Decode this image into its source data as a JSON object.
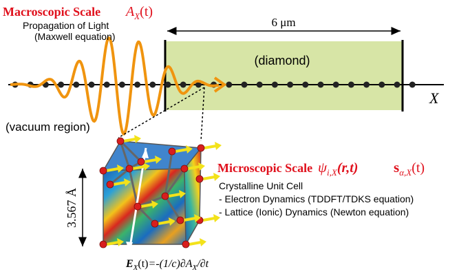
{
  "macroscopic": {
    "title": "Macroscopic Scale",
    "symbol": "A",
    "subscript": "X",
    "argument": "(t)",
    "caption": [
      "Propagation of Light",
      "(Maxwell equation)"
    ]
  },
  "scale_label": "6 μm",
  "region_labels": {
    "diamond": "(diamond)",
    "vacuum": "(vacuum region)"
  },
  "axis_label": "X",
  "microscopic": {
    "title": "Microscopic Scale",
    "wavefunction": {
      "symbol": "ψ",
      "subscript": "i,X",
      "argument": "(r,t)"
    },
    "displacement": {
      "symbol": "s",
      "subscript": "α,X",
      "argument": "(t)"
    }
  },
  "unit_cell": {
    "title": "Crystalline Unit Cell",
    "items": [
      "- Electron Dynamics (TDDFT/TDKS equation)",
      "- Lattice (Ionic) Dynamics (Newton equation)"
    ]
  },
  "lattice_constant": "3.567 Å",
  "field_equation": {
    "lhs": "E",
    "lhs_subscript": "X",
    "lhs_argument": "(t)",
    "rhs": "=-(1/c)∂A",
    "rhs_subscript": "X",
    "rhs_tail": "/∂t"
  }
}
